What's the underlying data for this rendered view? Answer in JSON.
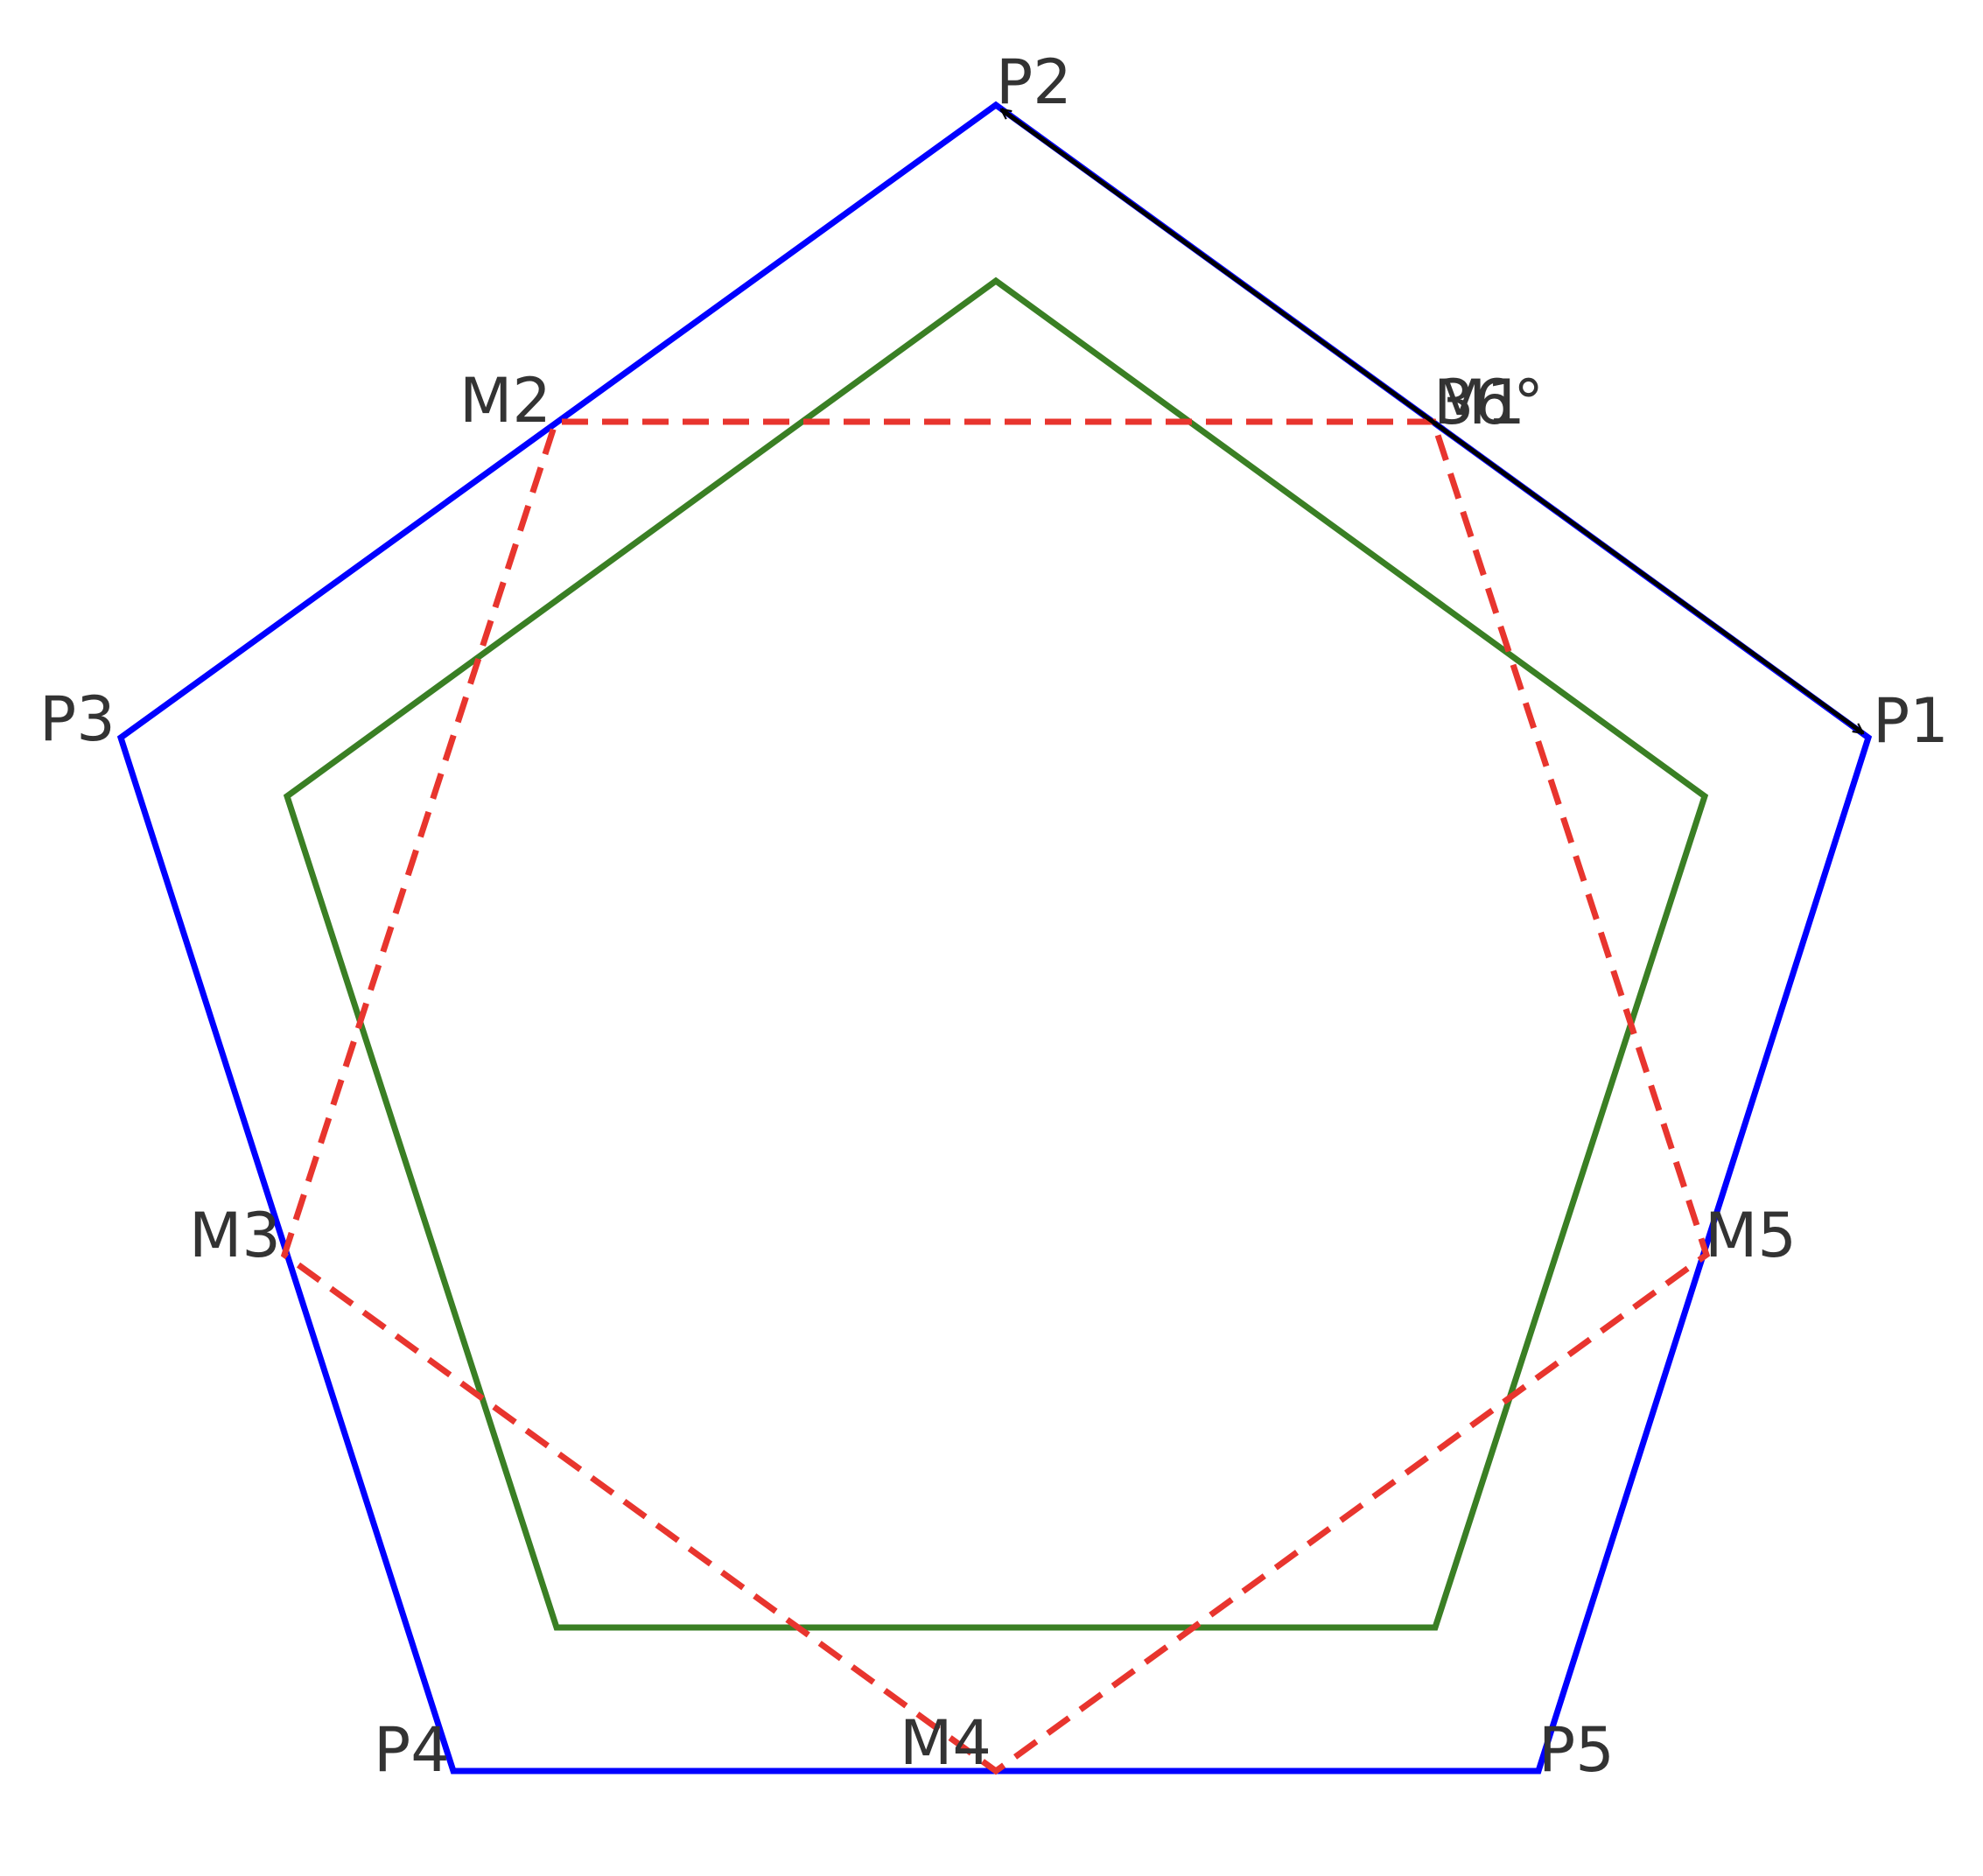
{
  "diagram": {
    "colors": {
      "outer_pentagon": "#0000ff",
      "inner_pentagon": "#3a7f24",
      "midpoint_star": "#e8352e",
      "arrow": "#000000",
      "label": "#333333"
    },
    "labels": {
      "P1": "P1",
      "P2": "P2",
      "P3": "P3",
      "P4": "P4",
      "P5": "P5",
      "M1": "M1",
      "M2": "M2",
      "M3": "M3",
      "M4": "M4",
      "M5": "M5",
      "angle": "36°"
    }
  }
}
